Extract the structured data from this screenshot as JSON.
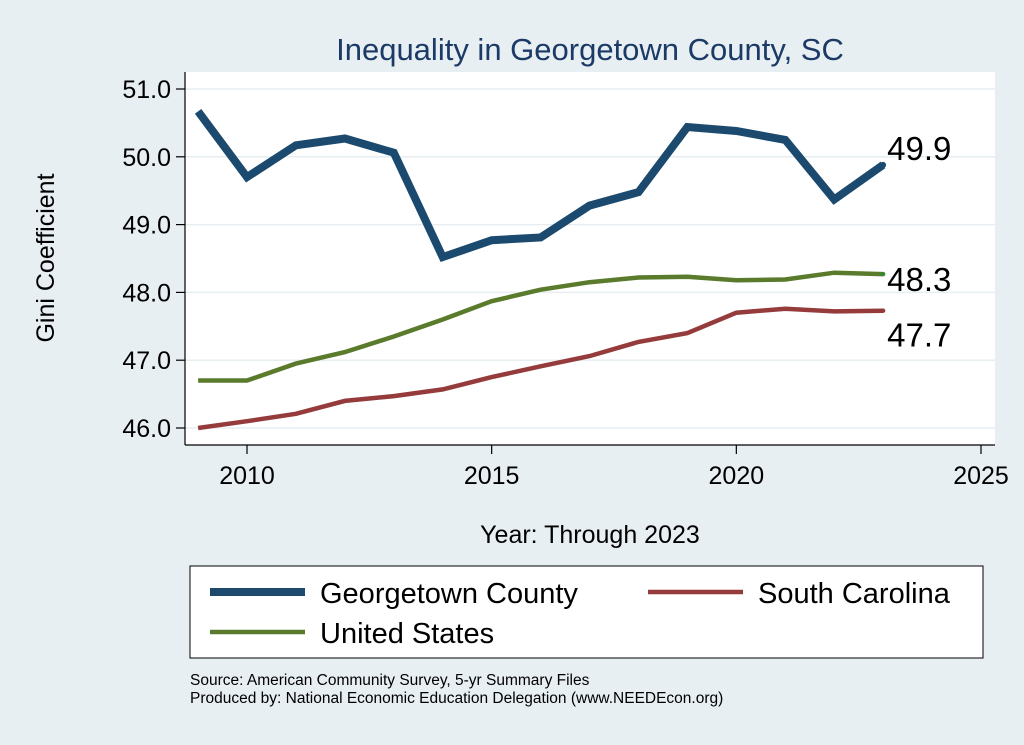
{
  "chart_data": {
    "type": "line",
    "title": "Inequality in Georgetown County, SC",
    "xlabel": "Year: Through 2023",
    "ylabel": "Gini Coefficient",
    "xlim": [
      2009,
      2025
    ],
    "ylim": [
      45.8,
      51.25
    ],
    "x_ticks": [
      2010,
      2015,
      2020,
      2025
    ],
    "x_tick_labels": [
      "2010",
      "2015",
      "2020",
      "2025"
    ],
    "y_ticks": [
      46,
      47,
      48,
      49,
      50,
      51
    ],
    "y_tick_labels": [
      "46.0",
      "47.0",
      "48.0",
      "49.0",
      "50.0",
      "51.0"
    ],
    "grid": true,
    "x": [
      2009,
      2010,
      2011,
      2012,
      2013,
      2014,
      2015,
      2016,
      2017,
      2018,
      2019,
      2020,
      2021,
      2022,
      2023
    ],
    "series": [
      {
        "name": "Georgetown County",
        "color": "#1b4a6e",
        "values": [
          50.67,
          49.7,
          50.17,
          50.27,
          50.06,
          48.52,
          48.77,
          48.81,
          49.28,
          49.48,
          50.44,
          50.38,
          50.25,
          49.37,
          49.88
        ],
        "end_label": "49.9"
      },
      {
        "name": "South Carolina",
        "color": "#953b3b",
        "values": [
          46.0,
          46.1,
          46.21,
          46.4,
          46.47,
          46.57,
          46.75,
          46.91,
          47.06,
          47.27,
          47.4,
          47.7,
          47.76,
          47.72,
          47.73
        ],
        "end_label": "47.7"
      },
      {
        "name": "United States",
        "color": "#5a7a2c",
        "values": [
          46.7,
          46.7,
          46.95,
          47.12,
          47.35,
          47.6,
          47.87,
          48.04,
          48.15,
          48.22,
          48.23,
          48.18,
          48.19,
          48.29,
          48.27
        ],
        "end_label": "48.3"
      }
    ],
    "legend": {
      "position": "bottom",
      "entries": [
        "Georgetown County",
        "South Carolina",
        "United States"
      ]
    }
  },
  "notes": {
    "source": "Source: American Community Survey, 5-yr Summary Files",
    "produced_by": "Produced by: National Economic Education Delegation (www.NEEDEcon.org)"
  }
}
